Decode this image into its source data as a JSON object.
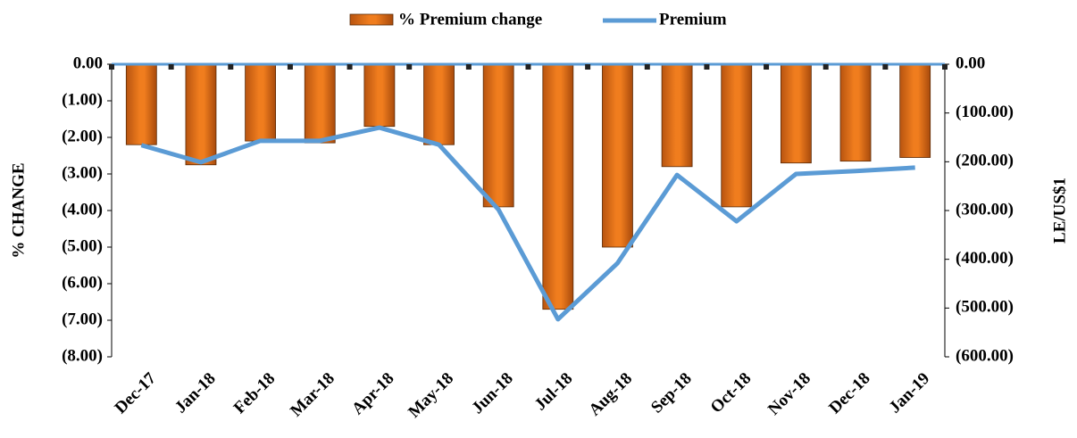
{
  "chart_data": {
    "type": "bar",
    "categories": [
      "Dec-17",
      "Jan-18",
      "Feb-18",
      "Mar-18",
      "Apr-18",
      "May-18",
      "Jun-18",
      "Jul-18",
      "Aug-18",
      "Sep-18",
      "Oct-18",
      "Nov-18",
      "Dec-18",
      "Jan-19"
    ],
    "series": [
      {
        "name": "% Premium change",
        "type": "bar",
        "color": "#f07d1e",
        "values": [
          -2.2,
          -2.75,
          -2.1,
          -2.15,
          -1.7,
          -2.2,
          -3.9,
          -6.7,
          -5.0,
          -2.8,
          -3.9,
          -2.7,
          -2.65,
          -2.55
        ]
      },
      {
        "name": "Premium",
        "type": "line",
        "color": "#5b9bd5",
        "axis": "y2",
        "values": [
          -166,
          -201,
          -157,
          -157,
          -130,
          -165,
          -298,
          -523,
          -408,
          -227,
          -322,
          -225,
          -219,
          -212
        ]
      }
    ],
    "ylabel": "% CHANGE",
    "y2label": "LE/US$1",
    "ylim": [
      -8,
      0
    ],
    "yticks": [
      {
        "value": 0,
        "label": "0.00"
      },
      {
        "value": -1,
        "label": "(1.00)"
      },
      {
        "value": -2,
        "label": "(2.00)"
      },
      {
        "value": -3,
        "label": "(3.00)"
      },
      {
        "value": -4,
        "label": "(4.00)"
      },
      {
        "value": -5,
        "label": "(5.00)"
      },
      {
        "value": -6,
        "label": "(6.00)"
      },
      {
        "value": -7,
        "label": "(7.00)"
      },
      {
        "value": -8,
        "label": "(8.00)"
      }
    ],
    "y2lim": [
      -600,
      0
    ],
    "y2ticks": [
      {
        "value": 0,
        "label": "0.00"
      },
      {
        "value": -100,
        "label": "(100.00)"
      },
      {
        "value": -200,
        "label": "(200.00)"
      },
      {
        "value": -300,
        "label": "(300.00)"
      },
      {
        "value": -400,
        "label": "(400.00)"
      },
      {
        "value": -500,
        "label": "(500.00)"
      },
      {
        "value": -600,
        "label": "(600.00)"
      }
    ],
    "legend": "top",
    "grid": false
  }
}
